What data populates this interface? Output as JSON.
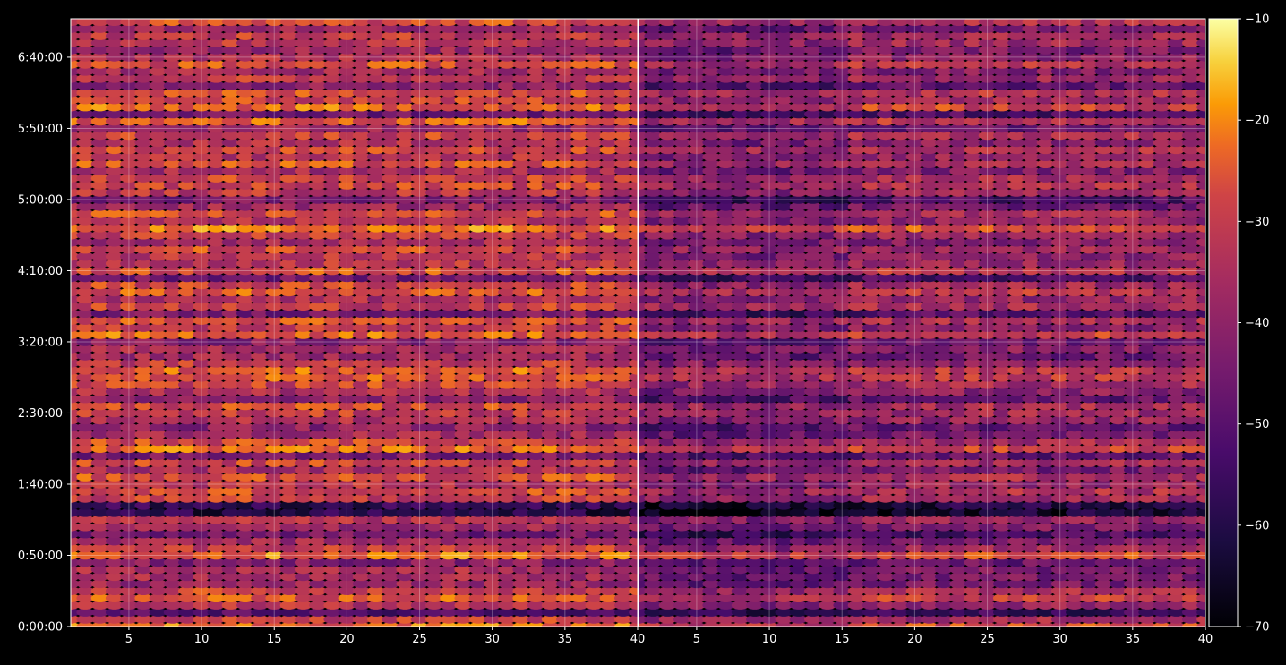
{
  "chart_data": {
    "type": "heatmap",
    "title": "",
    "xlabel": "",
    "ylabel": "",
    "colormap": "inferno",
    "colors": {
      "background": "#000000",
      "axis": "#ffffff",
      "grid": "#ffffff"
    },
    "grid": true,
    "panels": [
      {
        "name": "",
        "xlim": [
          1,
          40
        ],
        "xticks": [
          5,
          10,
          15,
          20,
          25,
          30,
          35,
          40
        ],
        "xtick_labels": [
          "5",
          "10",
          "15",
          "20",
          "25",
          "30",
          "35",
          "40"
        ]
      },
      {
        "name": "",
        "xlim": [
          1,
          40
        ],
        "xticks": [
          5,
          10,
          15,
          20,
          25,
          30,
          35,
          40
        ],
        "xtick_labels": [
          "5",
          "10",
          "15",
          "20",
          "25",
          "30",
          "35",
          "40"
        ]
      }
    ],
    "y": {
      "range_seconds": [
        0,
        25620
      ],
      "row_step_seconds": 300,
      "ticks_seconds": [
        0,
        3000,
        6000,
        9000,
        12000,
        15000,
        18000,
        21000,
        24000
      ],
      "tick_labels": [
        "0:00:00",
        "0:50:00",
        "1:40:00",
        "2:30:00",
        "3:20:00",
        "4:10:00",
        "5:00:00",
        "5:50:00",
        "6:40:00"
      ]
    },
    "colorbar": {
      "range": [
        -70,
        -10
      ],
      "ticks": [
        -10,
        -20,
        -30,
        -40,
        -50,
        -60,
        -70
      ],
      "tick_labels": [
        "−10",
        "−20",
        "−30",
        "−40",
        "−50",
        "−60",
        "−70"
      ]
    },
    "row_profile_panel1": [
      -23,
      -30,
      -52,
      -33,
      -26,
      -29,
      -38,
      -36,
      -35,
      -42,
      -22,
      -30,
      -37,
      -45,
      -38,
      -34,
      -60,
      -58,
      -30,
      -28,
      -33,
      -27,
      -35,
      -29,
      -44,
      -24,
      -28,
      -36,
      -41,
      -34,
      -31,
      -28,
      -40,
      -35,
      -29,
      -26,
      -25,
      -31,
      -37,
      -35,
      -42,
      -24,
      -31,
      -27,
      -44,
      -30,
      -35,
      -26,
      -29,
      -45,
      -27,
      -32,
      -33,
      -28,
      -36,
      -31,
      -22,
      -34,
      -28,
      -37,
      -43,
      -32,
      -29,
      -29,
      -36,
      -27,
      -33,
      -29,
      -34,
      -29,
      -39,
      -25,
      -46,
      -24,
      -29,
      -27,
      -40,
      -31,
      -36,
      -27,
      -33,
      -38,
      -32,
      -31,
      -37,
      -28,
      -31,
      -26
    ],
    "row_profile_panel2_offset": [
      -5,
      -6,
      -3,
      -6,
      -4,
      -6,
      -7,
      -8,
      -9,
      -5,
      -6,
      -8,
      -7,
      -8,
      -6,
      -5,
      -4,
      -3,
      -7,
      -6,
      -5,
      -8,
      -10,
      -7,
      -5,
      -6,
      -8,
      -9,
      -7,
      -5,
      -6,
      -7,
      -8,
      -6,
      -7,
      -5,
      -6,
      -8,
      -9,
      -7,
      -5,
      -6,
      -10,
      -8,
      -7,
      -5,
      -4,
      -6,
      -8,
      -7,
      -5,
      -6,
      -7,
      -8,
      -6,
      -7,
      -5,
      -6,
      -7,
      -8,
      -9,
      -6,
      -5,
      -6,
      -7,
      -8,
      -6,
      -5,
      -7,
      -6,
      -8,
      -7,
      -6,
      -5,
      -7,
      -6,
      -8,
      -7,
      -6,
      -5,
      -7,
      -6,
      -5,
      -6,
      -7,
      -6,
      -5,
      -6
    ]
  }
}
